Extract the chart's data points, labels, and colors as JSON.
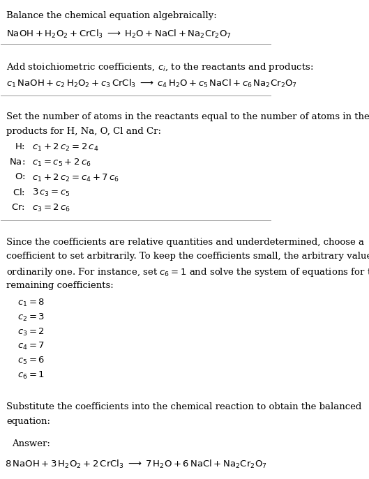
{
  "bg_color": "#ffffff",
  "text_color": "#000000",
  "fig_width": 5.29,
  "fig_height": 6.87,
  "section1_title": "Balance the chemical equation algebraically:",
  "section1_eq": "$\\mathrm{NaOH + H_2O_2 + CrCl_3 \\;\\longrightarrow\\; H_2O + NaCl + Na_2Cr_2O_7}$",
  "section2_title": "Add stoichiometric coefficients, $c_i$, to the reactants and products:",
  "section2_eq": "$c_1\\,\\mathrm{NaOH} + c_2\\,\\mathrm{H_2O_2} + c_3\\,\\mathrm{CrCl_3} \\;\\longrightarrow\\; c_4\\,\\mathrm{H_2O} + c_5\\,\\mathrm{NaCl} + c_6\\,\\mathrm{Na_2Cr_2O_7}$",
  "section3_title": "Set the number of atoms in the reactants equal to the number of atoms in the\nproducts for H, Na, O, Cl and Cr:",
  "section3_lines": [
    [
      "$\\mathrm{H}$:",
      "$c_1 + 2\\,c_2 = 2\\,c_4$"
    ],
    [
      "$\\mathrm{Na}$:",
      "$c_1 = c_5 + 2\\,c_6$"
    ],
    [
      "$\\mathrm{O}$:",
      "$c_1 + 2\\,c_2 = c_4 + 7\\,c_6$"
    ],
    [
      "$\\mathrm{Cl}$:",
      "$3\\,c_3 = c_5$"
    ],
    [
      "$\\mathrm{Cr}$:",
      "$c_3 = 2\\,c_6$"
    ]
  ],
  "section4_para": "Since the coefficients are relative quantities and underdetermined, choose a\ncoefficient to set arbitrarily. To keep the coefficients small, the arbitrary value is\nordinarily one. For instance, set $c_6 = 1$ and solve the system of equations for the\nremaining coefficients:",
  "section4_lines": [
    "$c_1 = 8$",
    "$c_2 = 3$",
    "$c_3 = 2$",
    "$c_4 = 7$",
    "$c_5 = 6$",
    "$c_6 = 1$"
  ],
  "section5_title": "Substitute the coefficients into the chemical reaction to obtain the balanced\nequation:",
  "answer_label": "Answer:",
  "answer_eq": "$8\\,\\mathrm{NaOH} + 3\\,\\mathrm{H_2O_2} + 2\\,\\mathrm{CrCl_3} \\;\\longrightarrow\\; 7\\,\\mathrm{H_2O} + 6\\,\\mathrm{NaCl} + \\mathrm{Na_2Cr_2O_7}$",
  "answer_box_color": "#ddeeff",
  "answer_box_border": "#5599cc"
}
